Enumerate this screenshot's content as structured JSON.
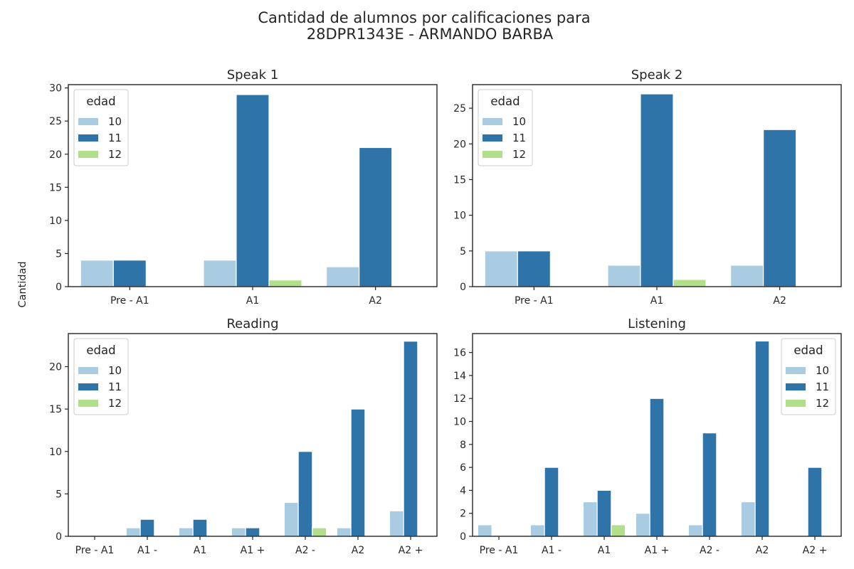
{
  "figure": {
    "title_line1": "Cantidad de alumnos por calificaciones para",
    "title_line2": "28DPR1343E - ARMANDO BARBA",
    "ylabel": "Cantidad"
  },
  "legend": {
    "title": "edad",
    "entries": [
      "10",
      "11",
      "12"
    ]
  },
  "colors": {
    "10": "#a9cce3",
    "11": "#2e74a8",
    "12": "#b2df8a",
    "axis": "#262626"
  },
  "chart_data": [
    {
      "type": "bar",
      "title": "Speak 1",
      "categories": [
        "Pre - A1",
        "A1",
        "A2"
      ],
      "series": [
        {
          "name": "10",
          "values": [
            4,
            4,
            3
          ]
        },
        {
          "name": "11",
          "values": [
            4,
            29,
            21
          ]
        },
        {
          "name": "12",
          "values": [
            0,
            1,
            0
          ]
        }
      ],
      "ylim": [
        0,
        30.5
      ],
      "yticks": [
        0,
        5,
        10,
        15,
        20,
        25,
        30
      ],
      "legend_position": "top-left"
    },
    {
      "type": "bar",
      "title": "Speak 2",
      "categories": [
        "Pre - A1",
        "A1",
        "A2"
      ],
      "series": [
        {
          "name": "10",
          "values": [
            5,
            3,
            3
          ]
        },
        {
          "name": "11",
          "values": [
            5,
            27,
            22
          ]
        },
        {
          "name": "12",
          "values": [
            0,
            1,
            0
          ]
        }
      ],
      "ylim": [
        0,
        28.3
      ],
      "yticks": [
        0,
        5,
        10,
        15,
        20,
        25
      ],
      "legend_position": "top-left"
    },
    {
      "type": "bar",
      "title": "Reading",
      "categories": [
        "Pre - A1",
        "A1 -",
        "A1",
        "A1 +",
        "A2 -",
        "A2",
        "A2 +"
      ],
      "series": [
        {
          "name": "10",
          "values": [
            0,
            1,
            1,
            1,
            4,
            1,
            3
          ]
        },
        {
          "name": "11",
          "values": [
            0,
            2,
            2,
            1,
            10,
            15,
            23
          ]
        },
        {
          "name": "12",
          "values": [
            0,
            0,
            0,
            0,
            1,
            0,
            0
          ]
        }
      ],
      "ylim": [
        0,
        23.9
      ],
      "yticks": [
        0,
        5,
        10,
        15,
        20
      ],
      "legend_position": "top-left"
    },
    {
      "type": "bar",
      "title": "Listening",
      "categories": [
        "Pre - A1",
        "A1 -",
        "A1",
        "A1 +",
        "A2 -",
        "A2",
        "A2 +"
      ],
      "series": [
        {
          "name": "10",
          "values": [
            1,
            1,
            3,
            2,
            1,
            3,
            0
          ]
        },
        {
          "name": "11",
          "values": [
            0,
            6,
            4,
            12,
            9,
            17,
            6
          ]
        },
        {
          "name": "12",
          "values": [
            0,
            0,
            1,
            0,
            0,
            0,
            0
          ]
        }
      ],
      "ylim": [
        0,
        17.65
      ],
      "yticks": [
        0,
        2,
        4,
        6,
        8,
        10,
        12,
        14,
        16
      ],
      "legend_position": "top-right"
    }
  ]
}
